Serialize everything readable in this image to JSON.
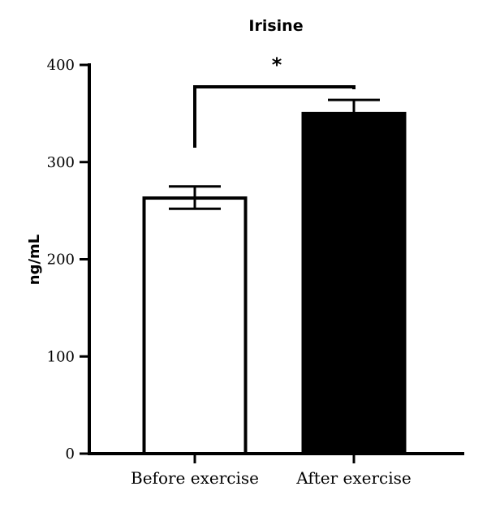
{
  "chart_data": {
    "type": "bar",
    "title": "Irisine",
    "xlabel": "",
    "ylabel": "ng/mL",
    "ylim": [
      0,
      400
    ],
    "yticks": [
      {
        "value": 0,
        "label": "0"
      },
      {
        "value": 100,
        "label": "100"
      },
      {
        "value": 200,
        "label": "200"
      },
      {
        "value": 300,
        "label": "300"
      },
      {
        "value": 400,
        "label": "400"
      }
    ],
    "categories": [
      "Before exercise",
      "After exercise"
    ],
    "values": [
      263,
      350
    ],
    "error_upper": [
      275,
      364
    ],
    "error_lower": [
      252,
      336
    ],
    "bar_fills": [
      "#ffffff",
      "#000000"
    ],
    "significance": {
      "label": "*",
      "between": [
        0,
        1
      ]
    },
    "grid": false,
    "legend": "none"
  }
}
